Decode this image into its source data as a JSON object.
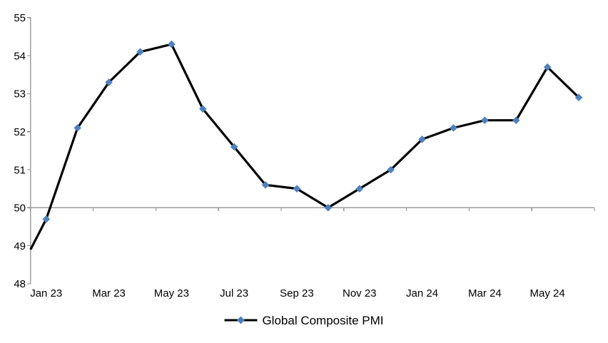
{
  "chart_data": {
    "type": "line",
    "title": "",
    "legend_position": "bottom",
    "categories": [
      "Jan 23",
      "Feb 23",
      "Mar 23",
      "Apr 23",
      "May 23",
      "Jun 23",
      "Jul 23",
      "Aug 23",
      "Sep 23",
      "Oct 23",
      "Nov 23",
      "Dec 23",
      "Jan 24",
      "Feb 24",
      "Mar 24",
      "Apr 24",
      "May 24",
      "Jun 24"
    ],
    "series": [
      {
        "name": "Global Composite PMI",
        "values": [
          49.7,
          52.1,
          53.3,
          54.1,
          54.3,
          52.6,
          51.6,
          50.6,
          50.5,
          50.0,
          50.5,
          51.0,
          51.8,
          52.1,
          52.3,
          52.3,
          53.7,
          52.9
        ],
        "line_start_at_axis_value": 48.9
      }
    ],
    "x_tick_labels": [
      "Jan 23",
      "Mar 23",
      "May 23",
      "Jul 23",
      "Sep 23",
      "Nov 23",
      "Jan 24",
      "Mar 24",
      "May 24"
    ],
    "y_ticks": [
      48,
      49,
      50,
      51,
      52,
      53,
      54,
      55
    ],
    "ylim": [
      48,
      55
    ],
    "x_axis_cross_value": 50,
    "grid": "none",
    "marker_shape": "diamond",
    "colors": {
      "marker": "#4F81BD",
      "line": "#000000",
      "axis": "#9E9E9E",
      "tick": "#8C8C8C",
      "text": "#000000",
      "background": "#FFFFFF"
    }
  }
}
